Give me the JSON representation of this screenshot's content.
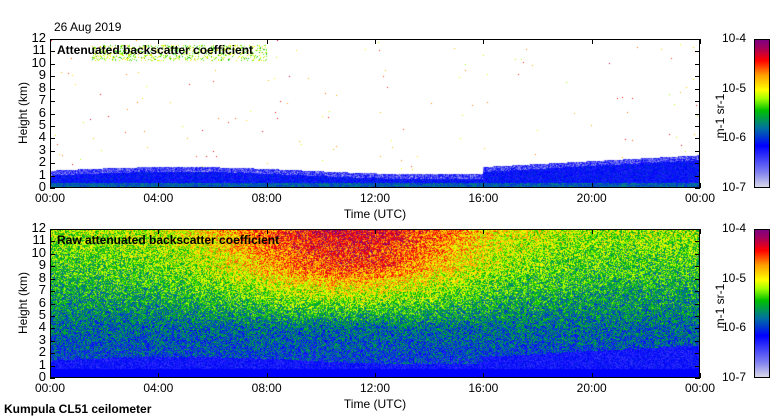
{
  "date": "26 Aug 2019",
  "footer": "Kumpula CL51 ceilometer",
  "colors": {
    "low": "#d8d8e8",
    "blue": "#0000ff",
    "green": "#00c000",
    "yellow": "#ffff00",
    "red": "#ff0000",
    "high": "#800080"
  },
  "chart_data": [
    {
      "type": "heatmap",
      "title": "Attenuated backscatter coefficient",
      "xlabel": "Time (UTC)",
      "ylabel": "Height (km)",
      "x_ticks": [
        "00:00",
        "04:00",
        "08:00",
        "12:00",
        "16:00",
        "20:00",
        "00:00"
      ],
      "y_ticks": [
        "0",
        "1",
        "2",
        "3",
        "4",
        "5",
        "6",
        "7",
        "8",
        "9",
        "10",
        "11",
        "12"
      ],
      "ylim": [
        0,
        12
      ],
      "colorbar": {
        "label": "m-1 sr-1",
        "ticks": [
          "10-7",
          "10-6",
          "10-5",
          "10-4"
        ],
        "range": [
          1e-07,
          0.0001
        ],
        "scale": "log"
      }
    },
    {
      "type": "heatmap",
      "title": "Raw attenuated backscatter coefficient",
      "xlabel": "Time (UTC)",
      "ylabel": "Height (km)",
      "x_ticks": [
        "00:00",
        "04:00",
        "08:00",
        "12:00",
        "16:00",
        "20:00",
        "00:00"
      ],
      "y_ticks": [
        "0",
        "1",
        "2",
        "3",
        "4",
        "5",
        "6",
        "7",
        "8",
        "9",
        "10",
        "11",
        "12"
      ],
      "ylim": [
        0,
        12
      ],
      "colorbar": {
        "label": "m-1 sr-1",
        "ticks": [
          "10-7",
          "10-6",
          "10-5",
          "10-4"
        ],
        "range": [
          1e-07,
          0.0001
        ],
        "scale": "log"
      }
    }
  ]
}
